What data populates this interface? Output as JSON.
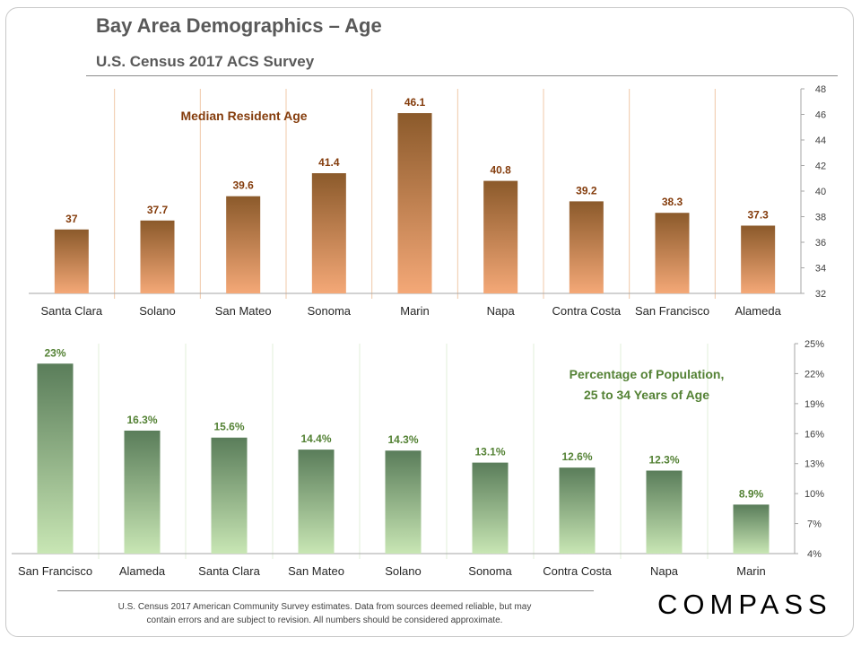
{
  "header": {
    "title": "Bay Area Demographics – Age",
    "subtitle": "U.S. Census 2017 ACS Survey"
  },
  "chart_data": [
    {
      "type": "bar",
      "title": "Median Resident Age",
      "categories": [
        "Santa Clara",
        "Solano",
        "San Mateo",
        "Sonoma",
        "Marin",
        "Napa",
        "Contra Costa",
        "San Francisco",
        "Alameda"
      ],
      "values": [
        37,
        37.7,
        39.6,
        41.4,
        46.1,
        40.8,
        39.2,
        38.3,
        37.3
      ],
      "value_labels": [
        "37",
        "37.7",
        "39.6",
        "41.4",
        "46.1",
        "40.8",
        "39.2",
        "38.3",
        "37.3"
      ],
      "ylim": [
        32,
        48
      ],
      "yticks": [
        "32",
        "34",
        "36",
        "38",
        "40",
        "42",
        "44",
        "46",
        "48"
      ],
      "yaxis_side": "right",
      "grid": "vertical separators",
      "bar_gradient": [
        "#8b5a2b",
        "#f4a877"
      ],
      "title_color": "#843c0c",
      "grid_color": "#f0c8a8"
    },
    {
      "type": "bar",
      "title": "Percentage of Population, 25 to 34 Years of Age",
      "title_lines": [
        "Percentage of Population,",
        "25 to 34 Years of Age"
      ],
      "categories": [
        "San Francisco",
        "Alameda",
        "Santa Clara",
        "San Mateo",
        "Solano",
        "Sonoma",
        "Contra Costa",
        "Napa",
        "Marin"
      ],
      "values": [
        23,
        16.3,
        15.6,
        14.4,
        14.3,
        13.1,
        12.6,
        12.3,
        8.9
      ],
      "value_labels": [
        "23%",
        "16.3%",
        "15.6%",
        "14.4%",
        "14.3%",
        "13.1%",
        "12.6%",
        "12.3%",
        "8.9%"
      ],
      "ylim": [
        4,
        25
      ],
      "yticks": [
        "4%",
        "7%",
        "10%",
        "13%",
        "16%",
        "19%",
        "22%",
        "25%"
      ],
      "yaxis_side": "right",
      "grid": "vertical separators",
      "bar_gradient": [
        "#5a7d5a",
        "#c8e6b4"
      ],
      "title_color": "#548235",
      "grid_color": "#e2efd9"
    }
  ],
  "footer": {
    "note_line1": "U.S. Census 2017 American Community Survey estimates. Data from sources deemed reliable, but may",
    "note_line2": "contain errors and are subject to revision.  All numbers should be considered approximate.",
    "logo": "COMPASS"
  }
}
